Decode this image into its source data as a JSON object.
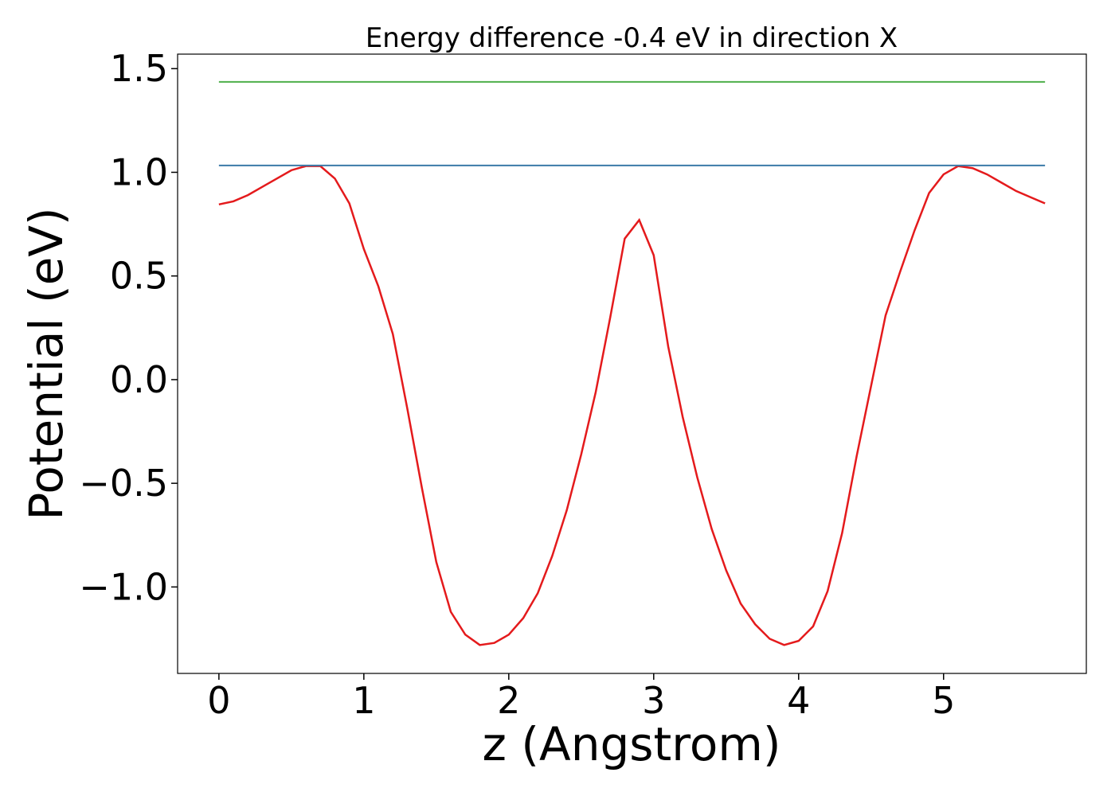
{
  "chart_data": {
    "type": "line",
    "title": "Energy difference -0.4 eV in direction X",
    "xlabel": "z (Angstrom)",
    "ylabel": "Potential (eV)",
    "xlim": [
      -0.285,
      5.985
    ],
    "ylim": [
      -1.417,
      1.57
    ],
    "xticks": [
      0,
      1,
      2,
      3,
      4,
      5
    ],
    "yticks": [
      {
        "value": -1.0,
        "label": "−1.0"
      },
      {
        "value": -0.5,
        "label": "−0.5"
      },
      {
        "value": 0,
        "label": "0.0"
      },
      0.5,
      {
        "value": 1.0,
        "label": "1.0"
      },
      1.5
    ],
    "series": [
      {
        "color": "#e41a1c",
        "x": [
          0,
          0.1,
          0.2,
          0.3,
          0.4,
          0.5,
          0.6,
          0.7,
          0.8,
          0.9,
          1.0,
          1.1,
          1.2,
          1.3,
          1.4,
          1.5,
          1.6,
          1.7,
          1.8,
          1.9,
          2.0,
          2.1,
          2.2,
          2.3,
          2.4,
          2.5,
          2.6,
          2.7,
          2.8,
          2.9,
          3.0,
          3.1,
          3.2,
          3.3,
          3.4,
          3.5,
          3.6,
          3.7,
          3.8,
          3.9,
          4.0,
          4.1,
          4.2,
          4.3,
          4.4,
          4.5,
          4.6,
          4.7,
          4.8,
          4.9,
          5.0,
          5.1,
          5.2,
          5.3,
          5.4,
          5.5,
          5.6,
          5.7
        ],
        "values": [
          0.845,
          0.86,
          0.89,
          0.93,
          0.97,
          1.01,
          1.03,
          1.03,
          0.97,
          0.85,
          0.63,
          0.45,
          0.22,
          -0.14,
          -0.52,
          -0.88,
          -1.12,
          -1.23,
          -1.28,
          -1.27,
          -1.23,
          -1.15,
          -1.03,
          -0.85,
          -0.63,
          -0.36,
          -0.06,
          0.3,
          0.68,
          0.77,
          0.6,
          0.16,
          -0.18,
          -0.47,
          -0.72,
          -0.92,
          -1.08,
          -1.18,
          -1.25,
          -1.28,
          -1.26,
          -1.19,
          -1.02,
          -0.74,
          -0.37,
          -0.03,
          0.31,
          0.52,
          0.72,
          0.9,
          0.99,
          1.03,
          1.02,
          0.99,
          0.95,
          0.91,
          0.88,
          0.85
        ]
      },
      {
        "color": "#3b7aa8",
        "x": [
          0,
          5.7
        ],
        "values": [
          1.033,
          1.033
        ]
      },
      {
        "color": "#4daf4a",
        "x": [
          0,
          5.7
        ],
        "values": [
          1.436,
          1.436
        ]
      }
    ]
  }
}
